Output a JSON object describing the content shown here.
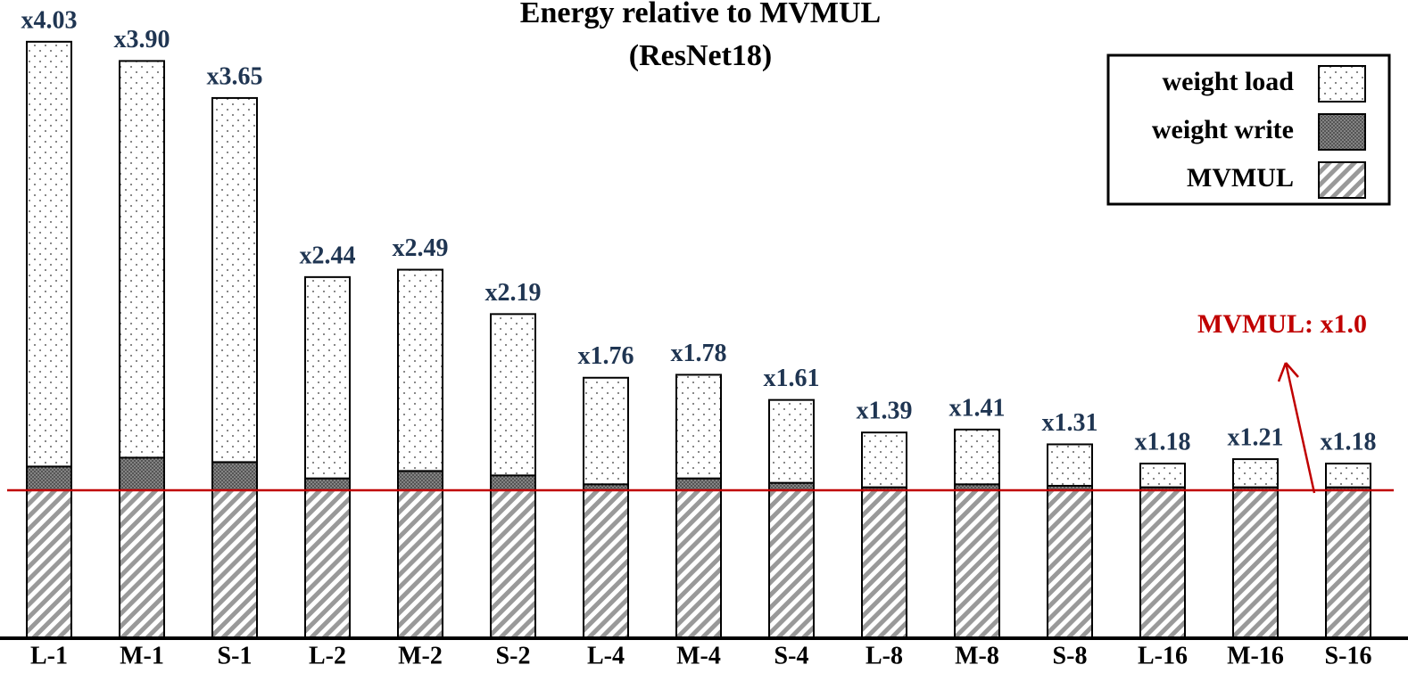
{
  "chart_data": {
    "type": "stacked_bar",
    "title": "Energy relative to MVMUL",
    "subtitle": "(ResNet18)",
    "categories": [
      "L-1",
      "M-1",
      "S-1",
      "L-2",
      "M-2",
      "S-2",
      "L-4",
      "M-4",
      "S-4",
      "L-8",
      "M-8",
      "S-8",
      "L-16",
      "M-16",
      "S-16"
    ],
    "series": [
      {
        "name": "MVMUL",
        "color": "#888888",
        "pattern": "hatch",
        "values": [
          1,
          1,
          1,
          1,
          1,
          1,
          1,
          1,
          1,
          1,
          1,
          1,
          1,
          1,
          1
        ]
      },
      {
        "name": "weight write",
        "color": "#666666",
        "pattern": "dense-dots",
        "values": [
          0.16,
          0.22,
          0.19,
          0.08,
          0.13,
          0.1,
          0.04,
          0.08,
          0.05,
          0.02,
          0.04,
          0.03,
          0.02,
          0.02,
          0.02
        ]
      },
      {
        "name": "weight load",
        "color": "#ffffff",
        "pattern": "dots",
        "values": [
          2.87,
          2.68,
          2.46,
          1.36,
          1.36,
          1.09,
          0.72,
          0.7,
          0.56,
          0.37,
          0.37,
          0.28,
          0.16,
          0.19,
          0.16
        ]
      }
    ],
    "totals": [
      4.03,
      3.9,
      3.65,
      2.44,
      2.49,
      2.19,
      1.76,
      1.78,
      1.61,
      1.39,
      1.41,
      1.31,
      1.18,
      1.21,
      1.18
    ],
    "total_labels": [
      "x4.03",
      "x3.90",
      "x3.65",
      "x2.44",
      "x2.49",
      "x2.19",
      "x1.76",
      "x1.78",
      "x1.61",
      "x1.39",
      "x1.41",
      "x1.31",
      "x1.18",
      "x1.21",
      "x1.18"
    ],
    "ylim": [
      0,
      4.3
    ],
    "reference_line": {
      "value": 1,
      "color": "#c00000",
      "label": "MVMUL: x1.0"
    },
    "legend": "upper right"
  }
}
